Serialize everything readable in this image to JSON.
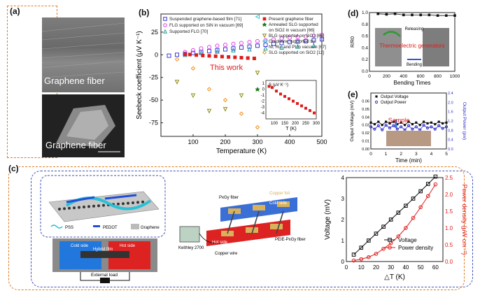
{
  "panels": {
    "a": {
      "label": "(a)",
      "top_caption": "Graphene fiber",
      "bottom_caption": "Graphene fiber"
    },
    "b": {
      "label": "(b)",
      "annotation": "This work",
      "legend_left": [
        "Suspended graphene-based film [71]",
        "FLG supported on SiN in vacuum [69]",
        "Supported FLG [70]"
      ],
      "legend_right": [
        "Present graphene fiber",
        "Annealed SLG supported",
        "on SiO2 in vacuum [66]",
        "BLG supported on SiO2 [68]",
        "Graphene supported by",
        "Ni, Ru, and Pt in vacuum [67]",
        "SLG supported on SiO2 [12]"
      ],
      "colors": {
        "suspended": "#3b3bd6",
        "fln": "#e040e0",
        "supported_flg": "#20a0a0",
        "present": "#e01b1b",
        "annealed": "#1f7a1f",
        "blg": "#8b8b14",
        "ni": "#36c9d8",
        "slg": "#f0901c"
      }
    },
    "d": {
      "label": "(d)",
      "ylabel": "R/R0",
      "xlabel": "Bending Times",
      "annotation_release": "Releasing",
      "annotation_bend": "Bending",
      "overlay": "Thermoelectric generators"
    },
    "e": {
      "label": "(e)",
      "ylabel_left": "Output Voltage (mV)",
      "ylabel_right": "Output Power (pw)",
      "xlabel": "Time (min)",
      "legend": [
        "Output Voltage",
        "Output Power"
      ],
      "sample": "Sample"
    },
    "c": {
      "label": "(c)",
      "legend_items": [
        "PSS",
        "PEDOT",
        "Graphene"
      ],
      "device_labels": {
        "cold": "Cold side",
        "hybrid": "Hybrid film",
        "hot": "Hot side",
        "load": "External load"
      },
      "module_labels": {
        "fiber": "PxGy fiber",
        "copper_foil": "Copper foil",
        "cold": "Cold side",
        "hot": "Hot side",
        "keithley": "Keithley 2700",
        "copper_wire": "Copper wire",
        "peie": "PEIE-PxGy fiber"
      }
    }
  },
  "chart_data": [
    {
      "type": "scatter",
      "panel": "b",
      "xlabel": "Temperature (K)",
      "ylabel": "Seebeck coefficient (μV K⁻¹)",
      "xlim": [
        0,
        500
      ],
      "ylim": [
        -90,
        45
      ],
      "xticks": [
        100,
        200,
        300,
        400,
        500
      ],
      "yticks": [
        -75,
        -50,
        -25,
        0,
        25
      ],
      "series": [
        {
          "name": "Suspended graphene-based film [71]",
          "marker": "square-open",
          "color": "#3b3bd6",
          "x": [
            25,
            50,
            75,
            100,
            125,
            150,
            175,
            200,
            225,
            250,
            275,
            300,
            325,
            350,
            375,
            400,
            425,
            450,
            475,
            500
          ],
          "y": [
            -1,
            0,
            1,
            2,
            3,
            4,
            5,
            6,
            7,
            8,
            9,
            10,
            11,
            12,
            13,
            14,
            14.5,
            15,
            16,
            17
          ]
        },
        {
          "name": "FLG supported on SiN in vacuum [69]",
          "marker": "circle-open",
          "color": "#e040e0",
          "x": [
            75,
            100,
            125,
            150,
            175,
            200,
            225,
            250,
            275,
            300,
            325,
            350,
            375,
            400,
            425,
            450,
            475,
            500
          ],
          "y": [
            3,
            5,
            7,
            8.5,
            10,
            11,
            12,
            13,
            14,
            15,
            16,
            17,
            18,
            19,
            19.5,
            20,
            21,
            22
          ]
        },
        {
          "name": "Supported FLG [70]",
          "marker": "triangle-open",
          "color": "#20a0a0",
          "x": [
            75,
            125,
            175,
            225,
            275,
            325,
            375,
            425,
            475
          ],
          "y": [
            0,
            2,
            3.5,
            5,
            6,
            7,
            8,
            9,
            10
          ]
        },
        {
          "name": "Present graphene fiber",
          "marker": "square-filled",
          "color": "#e01b1b",
          "x": [
            75,
            90,
            110,
            130,
            150,
            170,
            190,
            210,
            230,
            250,
            270,
            290
          ],
          "y": [
            0.5,
            0.3,
            -0.3,
            -0.8,
            -1.2,
            -1.6,
            -2.0,
            -2.4,
            -2.8,
            -3.2,
            -3.6,
            -4.0
          ]
        },
        {
          "name": "Annealed SLG supported on SiO2 in vacuum [66]",
          "marker": "star",
          "color": "#1f7a1f",
          "x": [
            300
          ],
          "y": [
            -38
          ]
        },
        {
          "name": "BLG supported on SiO2 [68]",
          "marker": "triangle-down-open",
          "color": "#8b8b14",
          "x": [
            50,
            100,
            150,
            200,
            250,
            300
          ],
          "y": [
            -30,
            -45,
            -62,
            -60,
            -45,
            -20
          ]
        },
        {
          "name": "Graphene supported by Ni, Ru, and Pt in vacuum [67]",
          "marker": "triangle-left-open",
          "color": "#36c9d8",
          "x": [
            300
          ],
          "y": [
            42
          ]
        },
        {
          "name": "SLG supported on SiO2 [12]",
          "marker": "diamond-open",
          "color": "#f0901c",
          "x": [
            50,
            100,
            150,
            200,
            250,
            300
          ],
          "y": [
            -5,
            -15,
            -38,
            -50,
            -65,
            -80
          ]
        }
      ]
    },
    {
      "type": "scatter",
      "panel": "b-inset",
      "xlabel": "T (K)",
      "ylabel": "S (μV K⁻¹)",
      "xlim": [
        60,
        300
      ],
      "ylim": [
        -5,
        1.5
      ],
      "xticks": [
        100,
        150,
        200,
        250,
        300
      ],
      "yticks": [
        1,
        0,
        -1,
        -2,
        -3,
        -4
      ],
      "series": [
        {
          "name": "Present graphene fiber",
          "marker": "square-filled",
          "color": "#e01b1b",
          "x": [
            75,
            90,
            110,
            130,
            150,
            170,
            190,
            210,
            230,
            250,
            270,
            290
          ],
          "y": [
            0.5,
            0.3,
            -0.3,
            -0.8,
            -1.2,
            -1.6,
            -2.0,
            -2.4,
            -2.8,
            -3.2,
            -3.6,
            -4.0
          ]
        }
      ]
    },
    {
      "type": "line",
      "panel": "d",
      "xlabel": "Bending Times",
      "ylabel": "R/R0",
      "xlim": [
        0,
        1000
      ],
      "ylim": [
        0,
        1.0
      ],
      "xticks": [
        0,
        200,
        400,
        600,
        800,
        1000
      ],
      "yticks": [
        0.0,
        0.2,
        0.4,
        0.6,
        0.8,
        1.0
      ],
      "series": [
        {
          "marker": "square-filled",
          "color": "#111111",
          "x": [
            100,
            200,
            300,
            400,
            500,
            600,
            700,
            800,
            900,
            1000
          ],
          "y": [
            0.98,
            0.97,
            0.98,
            0.96,
            0.96,
            0.96,
            0.96,
            0.95,
            0.95,
            0.95
          ]
        }
      ]
    },
    {
      "type": "line",
      "panel": "e",
      "xlabel": "Time (min)",
      "ylabel": "Output Voltage (mV)",
      "y2label": "Output Power (pw)",
      "xlim": [
        0,
        5
      ],
      "ylim": [
        0.0,
        0.07
      ],
      "y2lim": [
        0.0,
        2.4
      ],
      "xticks": [
        0,
        1,
        2,
        3,
        4,
        5
      ],
      "yticks": [
        0.0,
        0.01,
        0.02,
        0.03,
        0.04,
        0.05,
        0.06
      ],
      "y2ticks": [
        0.0,
        0.4,
        0.8,
        1.2,
        1.6,
        2.0,
        2.4
      ],
      "series": [
        {
          "name": "Output Voltage",
          "marker": "square-filled",
          "color": "#111111",
          "x": [
            0,
            0.25,
            0.5,
            0.75,
            1,
            1.25,
            1.5,
            1.75,
            2,
            2.25,
            2.5,
            2.75,
            3,
            3.25,
            3.5,
            3.75,
            4,
            4.25,
            4.5,
            4.75,
            5
          ],
          "y": [
            0.033,
            0.031,
            0.034,
            0.03,
            0.034,
            0.032,
            0.034,
            0.031,
            0.033,
            0.03,
            0.034,
            0.031,
            0.033,
            0.03,
            0.034,
            0.032,
            0.033,
            0.031,
            0.034,
            0.032,
            0.033
          ]
        },
        {
          "name": "Output Power",
          "marker": "circle-open",
          "color": "#3030d0",
          "axis": "right",
          "x": [
            0,
            0.25,
            0.5,
            0.75,
            1,
            1.25,
            1.5,
            1.75,
            2,
            2.25,
            2.5,
            2.75,
            3,
            3.25,
            3.5,
            3.75,
            4,
            4.25,
            4.5,
            4.75,
            5
          ],
          "y": [
            0.95,
            0.85,
            1.0,
            0.82,
            1.02,
            0.9,
            1.0,
            0.85,
            0.95,
            0.82,
            1.0,
            0.85,
            0.95,
            0.82,
            1.02,
            0.9,
            0.95,
            0.85,
            1.0,
            0.88,
            0.95
          ]
        }
      ]
    },
    {
      "type": "line",
      "panel": "c-right",
      "xlabel": "△T (K)",
      "ylabel": "Voltage (mV)",
      "y2label": "Power density (μW cm⁻²)",
      "xlim": [
        0,
        65
      ],
      "ylim": [
        0,
        4
      ],
      "y2lim": [
        0,
        2.5
      ],
      "xticks": [
        0,
        10,
        20,
        30,
        40,
        50,
        60
      ],
      "yticks": [
        0,
        1,
        2,
        3,
        4
      ],
      "y2ticks": [
        0.0,
        0.5,
        1.0,
        1.5,
        2.0,
        2.5
      ],
      "legend": [
        "Voltage",
        "Power density"
      ],
      "series": [
        {
          "name": "Voltage",
          "marker": "square-open",
          "color": "#111111",
          "x": [
            5,
            10,
            15,
            20,
            25,
            30,
            35,
            40,
            45,
            50,
            55,
            60
          ],
          "y": [
            0.33,
            0.66,
            1.0,
            1.33,
            1.66,
            2.0,
            2.33,
            2.66,
            3.0,
            3.35,
            3.7,
            4.05
          ]
        },
        {
          "name": "Power density",
          "marker": "circle-open",
          "color": "#e01b1b",
          "axis": "right",
          "x": [
            5,
            10,
            15,
            20,
            25,
            30,
            35,
            40,
            45,
            50,
            55,
            60
          ],
          "y": [
            0.03,
            0.07,
            0.13,
            0.23,
            0.38,
            0.55,
            0.75,
            1.0,
            1.3,
            1.62,
            1.95,
            2.3
          ]
        }
      ]
    }
  ]
}
